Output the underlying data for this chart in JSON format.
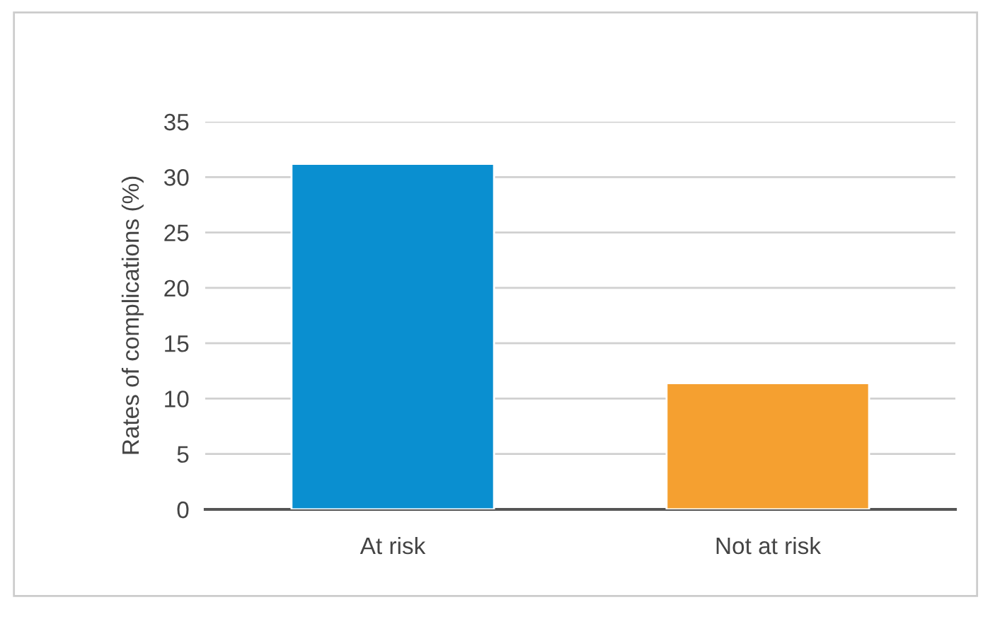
{
  "chart_data": {
    "type": "bar",
    "ylabel": "Rates of complications (%)",
    "categories": [
      "At risk",
      "Not at risk"
    ],
    "values": [
      31.2,
      11.4
    ],
    "colors": [
      "#0a8fd0",
      "#f5a030"
    ],
    "ylim": [
      0,
      35
    ],
    "yticks": [
      0,
      5,
      10,
      15,
      20,
      25,
      30,
      35
    ],
    "grid": "y"
  }
}
